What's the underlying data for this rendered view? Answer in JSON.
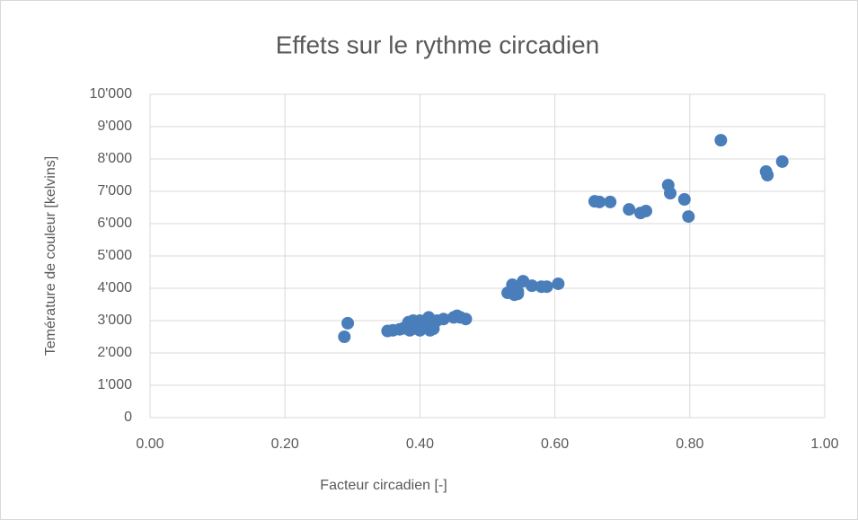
{
  "chart_data": {
    "type": "scatter",
    "title": "Effets sur le rythme circadien",
    "x_label": "Facteur circadien [-]",
    "y_label": "Temérature de couleur [kelvins]",
    "color": "#4a7ebb",
    "grid": true,
    "xlim": [
      0,
      1
    ],
    "ylim": [
      0,
      10000
    ],
    "xticks": [
      {
        "value": 0,
        "label": "0.00"
      },
      {
        "value": 0.2,
        "label": "0.20"
      },
      {
        "value": 0.4,
        "label": "0.40"
      },
      {
        "value": 0.6,
        "label": "0.60"
      },
      {
        "value": 0.8,
        "label": "0.80"
      },
      {
        "value": 1,
        "label": "1.00"
      }
    ],
    "yticks": [
      0,
      {
        "value": 1000,
        "label": "1'000"
      },
      {
        "value": 2000,
        "label": "2'000"
      },
      {
        "value": 3000,
        "label": "3'000"
      },
      {
        "value": 4000,
        "label": "4'000"
      },
      {
        "value": 5000,
        "label": "5'000"
      },
      {
        "value": 6000,
        "label": "6'000"
      },
      {
        "value": 7000,
        "label": "7'000"
      },
      {
        "value": 8000,
        "label": "8'000"
      },
      {
        "value": 9000,
        "label": "9'000"
      },
      {
        "value": 10000,
        "label": "10'000"
      }
    ],
    "x": [
      0.288,
      0.293,
      0.352,
      0.36,
      0.37,
      0.375,
      0.38,
      0.383,
      0.385,
      0.39,
      0.39,
      0.395,
      0.4,
      0.4,
      0.405,
      0.41,
      0.413,
      0.415,
      0.42,
      0.425,
      0.435,
      0.45,
      0.455,
      0.46,
      0.468,
      0.53,
      0.537,
      0.54,
      0.545,
      0.545,
      0.553,
      0.566,
      0.58,
      0.588,
      0.605,
      0.659,
      0.666,
      0.682,
      0.71,
      0.727,
      0.735,
      0.768,
      0.771,
      0.792,
      0.798,
      0.846,
      0.913,
      0.915,
      0.937
    ],
    "values": [
      2500,
      2920,
      2680,
      2700,
      2730,
      2760,
      2800,
      2950,
      2700,
      3000,
      2750,
      2850,
      2700,
      3000,
      2900,
      2800,
      3100,
      2700,
      2750,
      3000,
      3050,
      3100,
      3150,
      3100,
      3050,
      3860,
      4110,
      3800,
      3900,
      3830,
      4220,
      4080,
      4050,
      4050,
      4140,
      6690,
      6670,
      6670,
      6440,
      6330,
      6390,
      7190,
      6940,
      6750,
      6220,
      8580,
      7610,
      7500,
      7920
    ]
  }
}
